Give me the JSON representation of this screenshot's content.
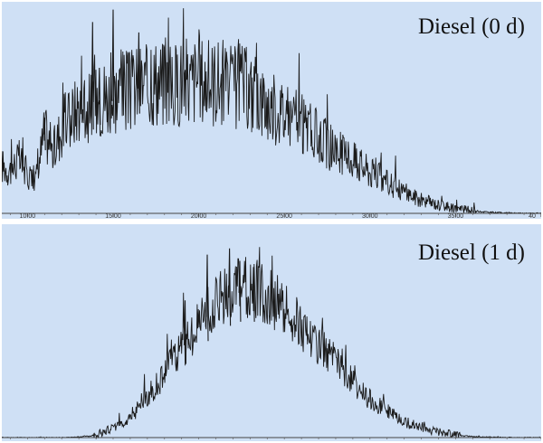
{
  "chart_data": [
    {
      "type": "line",
      "title": "Diesel (0 d)",
      "xlim": [
        8.5,
        40
      ],
      "ylim": [
        0,
        100
      ],
      "ticks": [
        "10.00",
        "15.00",
        "20.00",
        "25.00",
        "30.00",
        "35.00",
        "40"
      ],
      "tick_values": [
        10,
        15,
        20,
        25,
        30,
        35,
        40
      ],
      "grid": false,
      "line_color": "#1a1a1a",
      "background": "#cfe0f5",
      "series": [
        {
          "x": [
            8.5,
            9.0,
            9.5,
            10.0,
            10.5,
            11.0,
            11.5,
            12.0,
            12.5,
            13.0,
            13.5,
            14.0,
            14.5,
            15.0,
            15.5,
            16.0,
            16.5,
            17.0,
            17.5,
            18.0,
            18.5,
            19.0,
            19.5,
            20.0,
            20.5,
            21.0,
            21.5,
            22.0,
            22.5,
            23.0,
            23.5,
            24.0,
            24.5,
            25.0,
            25.5,
            26.0,
            26.5,
            27.0,
            27.5,
            28.0,
            28.5,
            29.0,
            29.5,
            30.0,
            30.5,
            31.0,
            31.5,
            32.0,
            32.5,
            33.0,
            33.5,
            34.0,
            34.5,
            35.0,
            35.5,
            36.0,
            36.5,
            37.0,
            37.5,
            38.0,
            38.5,
            39.0,
            39.5,
            40.0
          ],
          "values": [
            22,
            20,
            25,
            18,
            16,
            38,
            28,
            40,
            44,
            50,
            48,
            52,
            55,
            54,
            58,
            56,
            60,
            58,
            62,
            60,
            58,
            62,
            60,
            64,
            60,
            62,
            60,
            58,
            60,
            56,
            54,
            50,
            48,
            46,
            44,
            41,
            38,
            35,
            32,
            29,
            27,
            25,
            22,
            19,
            17,
            14,
            12,
            10,
            8,
            6,
            5,
            3.8,
            3,
            2.2,
            1.6,
            1.1,
            0.8,
            0.5,
            0.35,
            0.2,
            0.12,
            0.08,
            0.05,
            0.03
          ]
        }
      ],
      "peaks": [
        {
          "x": 13.8,
          "y": 92
        },
        {
          "x": 14.2,
          "y": 70
        },
        {
          "x": 15.0,
          "y": 98
        },
        {
          "x": 14.6,
          "y": 62
        },
        {
          "x": 16.5,
          "y": 87
        },
        {
          "x": 17.5,
          "y": 72
        },
        {
          "x": 11.0,
          "y": 46
        }
      ]
    },
    {
      "type": "line",
      "title": "Diesel (1 d)",
      "xlim": [
        8.5,
        40
      ],
      "ylim": [
        0,
        100
      ],
      "grid": false,
      "line_color": "#1a1a1a",
      "background": "#cfe0f5",
      "series": [
        {
          "x": [
            8.5,
            9.0,
            9.5,
            10.0,
            10.5,
            11.0,
            11.5,
            12.0,
            12.5,
            13.0,
            13.5,
            14.0,
            14.5,
            15.0,
            15.5,
            16.0,
            16.5,
            17.0,
            17.5,
            18.0,
            18.5,
            19.0,
            19.5,
            20.0,
            20.5,
            21.0,
            21.5,
            22.0,
            22.5,
            23.0,
            23.5,
            24.0,
            24.5,
            25.0,
            25.5,
            26.0,
            26.5,
            27.0,
            27.5,
            28.0,
            28.5,
            29.0,
            29.5,
            30.0,
            30.5,
            31.0,
            31.5,
            32.0,
            32.5,
            33.0,
            33.5,
            34.0,
            34.5,
            35.0,
            35.5,
            36.0,
            36.5,
            37.0,
            37.5,
            38.0,
            38.5,
            39.0,
            39.5,
            40.0
          ],
          "values": [
            0,
            0,
            0,
            0,
            0,
            0,
            0,
            0,
            0.1,
            0.3,
            0.6,
            1.2,
            2.5,
            4.5,
            7,
            10,
            14,
            19,
            24,
            30,
            36,
            42,
            48,
            54,
            58,
            62,
            66,
            68,
            70,
            70,
            69,
            67,
            64,
            60,
            56,
            52,
            48,
            44,
            40,
            35,
            30,
            26,
            22,
            18,
            15,
            12,
            9.5,
            7.5,
            5.8,
            4.4,
            3.3,
            2.4,
            1.7,
            1.2,
            0.8,
            0.5,
            0.3,
            0.2,
            0.12,
            0.08,
            0.05,
            0.03,
            0.02,
            0.01
          ]
        }
      ],
      "peaks": [
        {
          "x": 20.5,
          "y": 88
        },
        {
          "x": 21.8,
          "y": 91
        },
        {
          "x": 22.4,
          "y": 85
        },
        {
          "x": 23.2,
          "y": 82
        },
        {
          "x": 19.2,
          "y": 66
        }
      ]
    }
  ]
}
